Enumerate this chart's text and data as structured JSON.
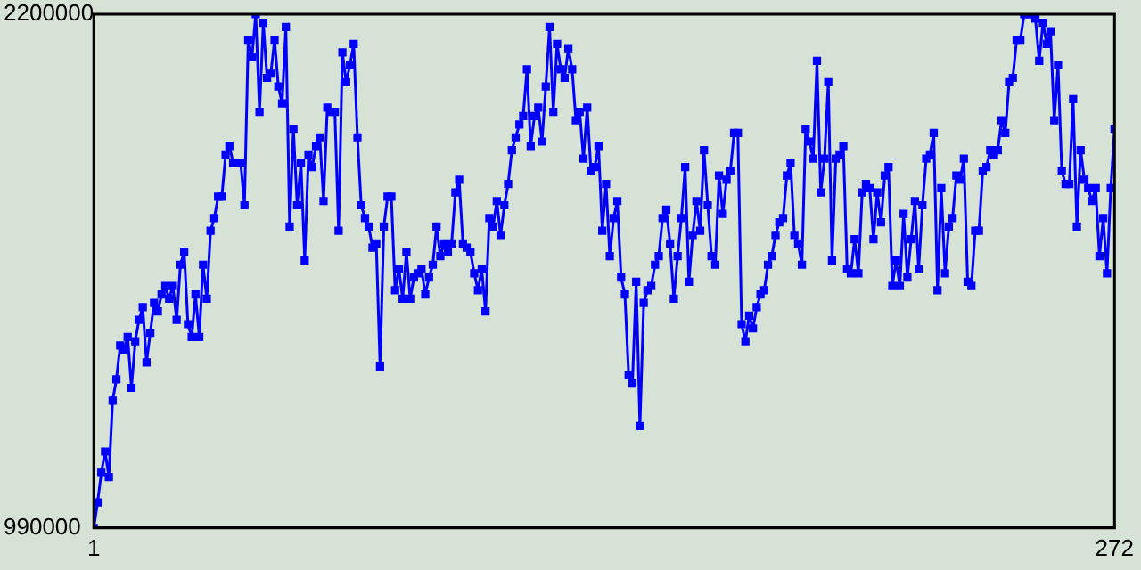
{
  "chart_data": {
    "type": "line",
    "color": "#0000ff",
    "marker": "square",
    "xlim": [
      1,
      272
    ],
    "xticks": [
      1,
      272
    ],
    "ylim": [
      990000,
      2200000
    ],
    "yticks": [
      990000,
      2200000
    ],
    "x": [
      1,
      2,
      3,
      4,
      5,
      6,
      7,
      8,
      9,
      10,
      11,
      12,
      13,
      14,
      15,
      16,
      17,
      18,
      19,
      20,
      21,
      22,
      23,
      24,
      25,
      26,
      27,
      28,
      29,
      30,
      31,
      32,
      33,
      34,
      35,
      36,
      37,
      38,
      39,
      40,
      41,
      42,
      43,
      44,
      45,
      46,
      47,
      48,
      49,
      50,
      51,
      52,
      53,
      54,
      55,
      56,
      57,
      58,
      59,
      60,
      61,
      62,
      63,
      64,
      65,
      66,
      67,
      68,
      69,
      70,
      71,
      72,
      73,
      74,
      75,
      76,
      77,
      78,
      79,
      80,
      81,
      82,
      83,
      84,
      85,
      86,
      87,
      88,
      89,
      90,
      91,
      92,
      93,
      94,
      95,
      96,
      97,
      98,
      99,
      100,
      101,
      102,
      103,
      104,
      105,
      106,
      107,
      108,
      109,
      110,
      111,
      112,
      113,
      114,
      115,
      116,
      117,
      118,
      119,
      120,
      121,
      122,
      123,
      124,
      125,
      126,
      127,
      128,
      129,
      130,
      131,
      132,
      133,
      134,
      135,
      136,
      137,
      138,
      139,
      140,
      141,
      142,
      143,
      144,
      145,
      146,
      147,
      148,
      149,
      150,
      151,
      152,
      153,
      154,
      155,
      156,
      157,
      158,
      159,
      160,
      161,
      162,
      163,
      164,
      165,
      166,
      167,
      168,
      169,
      170,
      171,
      172,
      173,
      174,
      175,
      176,
      177,
      178,
      179,
      180,
      181,
      182,
      183,
      184,
      185,
      186,
      187,
      188,
      189,
      190,
      191,
      192,
      193,
      194,
      195,
      196,
      197,
      198,
      199,
      200,
      201,
      202,
      203,
      204,
      205,
      206,
      207,
      208,
      209,
      210,
      211,
      212,
      213,
      214,
      215,
      216,
      217,
      218,
      219,
      220,
      221,
      222,
      223,
      224,
      225,
      226,
      227,
      228,
      229,
      230,
      231,
      232,
      233,
      234,
      235,
      236,
      237,
      238,
      239,
      240,
      241,
      242,
      243,
      244,
      245,
      246,
      247,
      248,
      249,
      250,
      251,
      252,
      253,
      254,
      255,
      256,
      257,
      258,
      259,
      260,
      261,
      262,
      263,
      264,
      265,
      266,
      267,
      268,
      269,
      270,
      271,
      272
    ],
    "values": [
      990000,
      1050000,
      1120000,
      1170000,
      1110000,
      1290000,
      1340000,
      1420000,
      1410000,
      1440000,
      1320000,
      1430000,
      1480000,
      1510000,
      1380000,
      1450000,
      1520000,
      1500000,
      1540000,
      1560000,
      1530000,
      1560000,
      1480000,
      1610000,
      1640000,
      1470000,
      1440000,
      1540000,
      1440000,
      1610000,
      1530000,
      1690000,
      1720000,
      1770000,
      1770000,
      1870000,
      1890000,
      1850000,
      1850000,
      1850000,
      1750000,
      2140000,
      2100000,
      2200000,
      1970000,
      2180000,
      2050000,
      2060000,
      2140000,
      2030000,
      1990000,
      2170000,
      1700000,
      1930000,
      1750000,
      1850000,
      1620000,
      1870000,
      1840000,
      1890000,
      1910000,
      1760000,
      1980000,
      1970000,
      1970000,
      1690000,
      2110000,
      2040000,
      2080000,
      2130000,
      1910000,
      1750000,
      1720000,
      1700000,
      1650000,
      1660000,
      1370000,
      1700000,
      1770000,
      1770000,
      1550000,
      1600000,
      1530000,
      1640000,
      1530000,
      1580000,
      1590000,
      1600000,
      1540000,
      1580000,
      1610000,
      1700000,
      1630000,
      1660000,
      1640000,
      1660000,
      1780000,
      1810000,
      1660000,
      1650000,
      1640000,
      1590000,
      1550000,
      1600000,
      1500000,
      1720000,
      1700000,
      1760000,
      1680000,
      1750000,
      1800000,
      1880000,
      1910000,
      1940000,
      1960000,
      2070000,
      1890000,
      1960000,
      1980000,
      1900000,
      2030000,
      2170000,
      1970000,
      2130000,
      2070000,
      2050000,
      2120000,
      2070000,
      1950000,
      1970000,
      1860000,
      1980000,
      1830000,
      1840000,
      1890000,
      1690000,
      1800000,
      1630000,
      1720000,
      1760000,
      1580000,
      1540000,
      1350000,
      1330000,
      1570000,
      1230000,
      1520000,
      1550000,
      1560000,
      1610000,
      1630000,
      1720000,
      1740000,
      1660000,
      1530000,
      1630000,
      1720000,
      1840000,
      1570000,
      1680000,
      1760000,
      1690000,
      1880000,
      1750000,
      1630000,
      1610000,
      1820000,
      1730000,
      1810000,
      1830000,
      1920000,
      1920000,
      1470000,
      1430000,
      1490000,
      1460000,
      1510000,
      1540000,
      1550000,
      1610000,
      1630000,
      1680000,
      1710000,
      1720000,
      1820000,
      1850000,
      1680000,
      1660000,
      1610000,
      1930000,
      1900000,
      1860000,
      2090000,
      1780000,
      1860000,
      2040000,
      1620000,
      1860000,
      1870000,
      1890000,
      1600000,
      1590000,
      1670000,
      1590000,
      1780000,
      1800000,
      1790000,
      1670000,
      1780000,
      1710000,
      1820000,
      1840000,
      1560000,
      1620000,
      1560000,
      1730000,
      1580000,
      1670000,
      1760000,
      1600000,
      1750000,
      1860000,
      1870000,
      1920000,
      1550000,
      1790000,
      1590000,
      1700000,
      1720000,
      1820000,
      1810000,
      1860000,
      1570000,
      1560000,
      1690000,
      1690000,
      1830000,
      1840000,
      1880000,
      1870000,
      1880000,
      1950000,
      1920000,
      2040000,
      2050000,
      2140000,
      2140000,
      2200000,
      2200000,
      2200000,
      2190000,
      2090000,
      2180000,
      2130000,
      2160000,
      1950000,
      2080000,
      1830000,
      1800000,
      1800000,
      2000000,
      1700000,
      1880000,
      1810000,
      1790000,
      1760000,
      1790000,
      1630000,
      1720000,
      1590000,
      1790000,
      1930000
    ]
  }
}
